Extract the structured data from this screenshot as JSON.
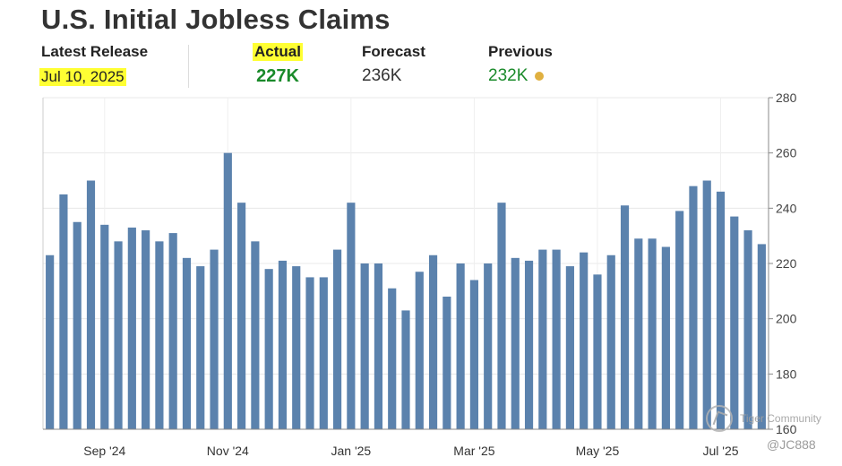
{
  "header": {
    "title": "U.S. Initial Jobless Claims",
    "latest_release_label": "Latest Release",
    "latest_release_value": "Jul 10, 2025",
    "actual_label": "Actual",
    "actual_value": "227K",
    "forecast_label": "Forecast",
    "forecast_value": "236K",
    "previous_label": "Previous",
    "previous_value": "232K"
  },
  "colors": {
    "bar": "#5b82ad",
    "actual_green": "#1a8a2a",
    "highlight": "#ffff33",
    "previous_dot": "#e0b040"
  },
  "watermark": {
    "name": "Tiger Community",
    "handle": "@JC888"
  },
  "chart_data": {
    "type": "bar",
    "title": "U.S. Initial Jobless Claims",
    "xlabel": "",
    "ylabel": "",
    "ylim": [
      160,
      280
    ],
    "yticks": [
      160,
      180,
      200,
      220,
      240,
      260,
      280
    ],
    "y_axis_side": "right",
    "grid": true,
    "x_tick_labels": [
      {
        "label": "Sep '24",
        "index": 4
      },
      {
        "label": "Nov '24",
        "index": 13
      },
      {
        "label": "Jan '25",
        "index": 22
      },
      {
        "label": "Mar '25",
        "index": 31
      },
      {
        "label": "May '25",
        "index": 40
      },
      {
        "label": "Jul '25",
        "index": 49
      }
    ],
    "values": [
      223,
      245,
      235,
      250,
      234,
      228,
      233,
      232,
      228,
      231,
      222,
      219,
      225,
      260,
      242,
      228,
      218,
      221,
      219,
      215,
      215,
      225,
      242,
      220,
      220,
      211,
      203,
      217,
      223,
      208,
      220,
      214,
      220,
      242,
      222,
      221,
      225,
      225,
      219,
      224,
      216,
      223,
      241,
      229,
      229,
      226,
      239,
      248,
      250,
      246,
      237,
      232,
      227
    ]
  }
}
